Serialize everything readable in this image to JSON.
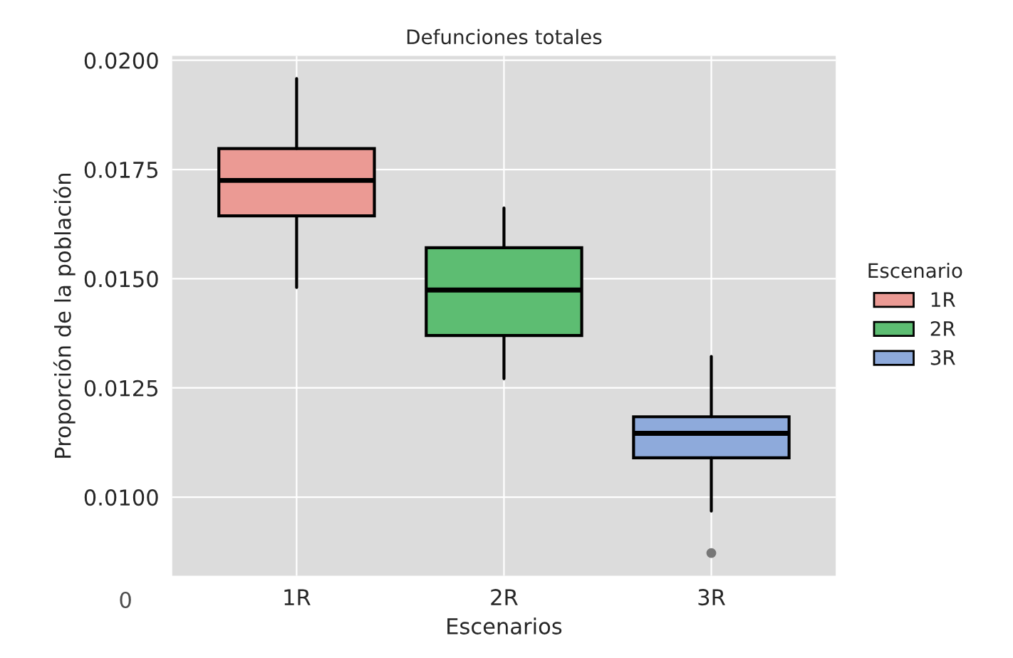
{
  "chart_data": {
    "type": "box",
    "title": "Defunciones totales",
    "xlabel": "Escenarios",
    "ylabel": "Proporción de la población",
    "legend_title": "Escenario",
    "categories": [
      "1R",
      "2R",
      "3R"
    ],
    "series": [
      {
        "name": "1R",
        "color": "#eb9a94",
        "boxes": [
          {
            "low": 0.0148,
            "q1": 0.01644,
            "median": 0.01725,
            "q3": 0.01798,
            "high": 0.01958
          },
          null,
          null
        ]
      },
      {
        "name": "2R",
        "color": "#5dbd72",
        "boxes": [
          null,
          {
            "low": 0.01271,
            "q1": 0.0137,
            "median": 0.01474,
            "q3": 0.01571,
            "high": 0.01662
          },
          null
        ]
      },
      {
        "name": "3R",
        "color": "#8eaadb",
        "boxes": [
          null,
          null,
          {
            "low": 0.00968,
            "q1": 0.0109,
            "median": 0.01146,
            "q3": 0.01184,
            "high": 0.01322,
            "outliers": [
              0.00872
            ]
          }
        ]
      }
    ],
    "ylim": [
      0.0082,
      0.0201
    ],
    "yticks": [
      {
        "value": 0.01,
        "label": "0.0100"
      },
      {
        "value": 0.0125,
        "label": "0.0125"
      },
      {
        "value": 0.015,
        "label": "0.0150"
      },
      {
        "value": 0.0175,
        "label": "0.0175"
      },
      {
        "value": 0.02,
        "label": "0.0200"
      }
    ],
    "grid": true,
    "legend": "right",
    "annotations": [
      "0"
    ]
  }
}
